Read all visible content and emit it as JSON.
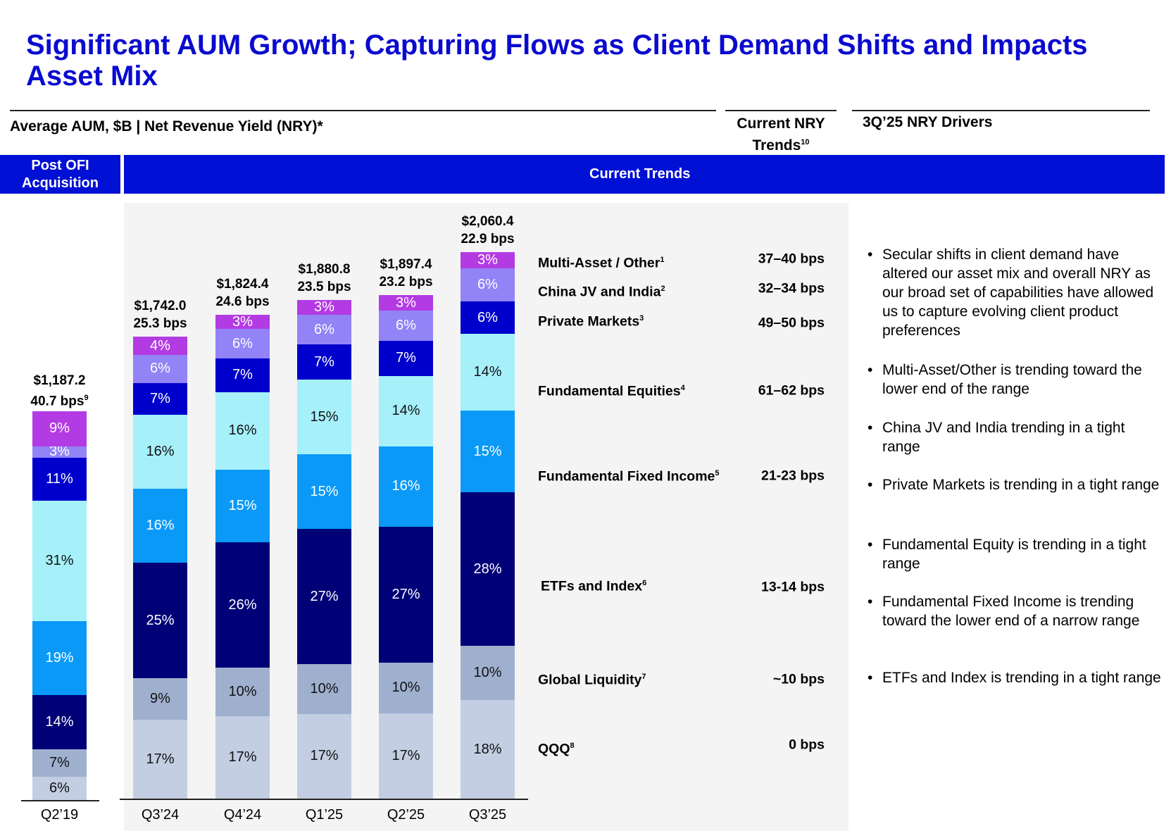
{
  "title": "Significant AUM Growth; Capturing Flows as Client Demand Shifts and Impacts Asset Mix",
  "header": {
    "left": "Average AUM, $B | Net Revenue Yield (NRY)*",
    "middle": "Current NRY Trends",
    "middle_sup": "10",
    "right": "3Q’25 NRY Drivers"
  },
  "bands": {
    "left": "Post OFI Acquisition",
    "right": "Current Trends"
  },
  "colors": {
    "accent": "#0010D4",
    "Multi-Asset / Other": "#B33BE3",
    "China JV and India": "#9283F7",
    "Private Markets": "#0000CC",
    "Fundamental Equities": "#A6F0FA",
    "Fundamental Fixed Income": "#0A99F7",
    "ETFs and Index": "#000077",
    "Global Liquidity": "#9FB0CF",
    "QQQ": "#C3CEE2"
  },
  "chart_data": {
    "type": "bar",
    "stacked": true,
    "categories": [
      "Q2’19",
      "Q3’24",
      "Q4’24",
      "Q1’25",
      "Q2’25",
      "Q3’25"
    ],
    "totals": [
      {
        "aum": "$1,187.2",
        "aum_value": 1187.2,
        "nry": "40.7 bps",
        "nry_sup": "9"
      },
      {
        "aum": "$1,742.0",
        "aum_value": 1742.0,
        "nry": "25.3 bps",
        "nry_sup": ""
      },
      {
        "aum": "$1,824.4",
        "aum_value": 1824.4,
        "nry": "24.6 bps",
        "nry_sup": ""
      },
      {
        "aum": "$1,880.8",
        "aum_value": 1880.8,
        "nry": "23.5 bps",
        "nry_sup": ""
      },
      {
        "aum": "$1,897.4",
        "aum_value": 1897.4,
        "nry": "23.2 bps",
        "nry_sup": ""
      },
      {
        "aum": "$2,060.4",
        "aum_value": 2060.4,
        "nry": "22.9 bps",
        "nry_sup": ""
      }
    ],
    "series": [
      {
        "name": "QQQ",
        "sup": "8",
        "nry_trend": "0 bps",
        "values": [
          6,
          17,
          17,
          17,
          17,
          18
        ]
      },
      {
        "name": "Global Liquidity",
        "sup": "7",
        "nry_trend": "~10 bps",
        "values": [
          7,
          9,
          10,
          10,
          10,
          10
        ]
      },
      {
        "name": "ETFs and Index",
        "sup": "6",
        "nry_trend": "13-14 bps",
        "values": [
          14,
          25,
          26,
          27,
          27,
          28
        ]
      },
      {
        "name": "Fundamental Fixed Income",
        "sup": "5",
        "nry_trend": "21-23 bps",
        "values": [
          19,
          16,
          15,
          15,
          16,
          15
        ]
      },
      {
        "name": "Fundamental Equities",
        "sup": "4",
        "nry_trend": "61–62 bps",
        "values": [
          31,
          16,
          16,
          15,
          14,
          14
        ]
      },
      {
        "name": "Private Markets",
        "sup": "3",
        "nry_trend": "49–50 bps",
        "values": [
          11,
          7,
          7,
          7,
          7,
          6
        ]
      },
      {
        "name": "China JV and India",
        "sup": "2",
        "nry_trend": "32–34 bps",
        "values": [
          3,
          6,
          6,
          6,
          6,
          6
        ]
      },
      {
        "name": "Multi-Asset / Other",
        "sup": "1",
        "nry_trend": "37–40 bps",
        "values": [
          9,
          4,
          3,
          3,
          3,
          3
        ]
      }
    ],
    "unit": "%",
    "ylabel": "",
    "xlabel": ""
  },
  "drivers": [
    "Secular shifts in client demand have altered our asset mix and overall NRY as our broad set of capabilities have allowed us to capture evolving client product preferences",
    "Multi-Asset/Other is trending toward the lower end of the range",
    "China JV and India trending in a tight range",
    "Private Markets is trending in a tight range",
    "Fundamental Equity is trending in a tight range",
    "Fundamental Fixed Income is trending toward the lower end of a narrow range",
    "ETFs and Index is trending in a tight range"
  ]
}
